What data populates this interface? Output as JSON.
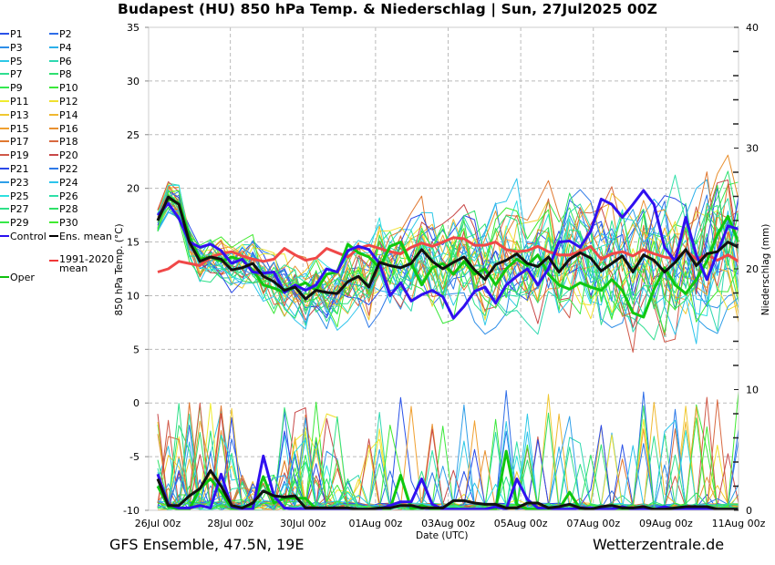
{
  "title": "Budapest  (HU)  850 hPa Temp. & Niederschlag | Sun, 27Jul2025 00Z",
  "footer": {
    "left": "GFS Ensemble, 47.5N, 19E",
    "right": "Wetterzentrale.de"
  },
  "legend": [
    {
      "label": "P1",
      "color": "#2a52e8"
    },
    {
      "label": "P2",
      "color": "#2f6ee8"
    },
    {
      "label": "P3",
      "color": "#2e8ee8"
    },
    {
      "label": "P4",
      "color": "#2cb0ea"
    },
    {
      "label": "P5",
      "color": "#2dc8e6"
    },
    {
      "label": "P6",
      "color": "#2ed8b0"
    },
    {
      "label": "P7",
      "color": "#2ede90"
    },
    {
      "label": "P8",
      "color": "#2ee070"
    },
    {
      "label": "P9",
      "color": "#34e850"
    },
    {
      "label": "P10",
      "color": "#3ae83a"
    },
    {
      "label": "P11",
      "color": "#f0ec30"
    },
    {
      "label": "P12",
      "color": "#f0e030"
    },
    {
      "label": "P13",
      "color": "#f0c830"
    },
    {
      "label": "P14",
      "color": "#f0b830"
    },
    {
      "label": "P15",
      "color": "#f0a030"
    },
    {
      "label": "P16",
      "color": "#e89030"
    },
    {
      "label": "P17",
      "color": "#e07830"
    },
    {
      "label": "P18",
      "color": "#d86840"
    },
    {
      "label": "P19",
      "color": "#d05848"
    },
    {
      "label": "P20",
      "color": "#c84848"
    },
    {
      "label": "P21",
      "color": "#2a48e8"
    },
    {
      "label": "P22",
      "color": "#2e7ae8"
    },
    {
      "label": "P23",
      "color": "#2e9ee8"
    },
    {
      "label": "P24",
      "color": "#2cc4ec"
    },
    {
      "label": "P25",
      "color": "#2ee0e0"
    },
    {
      "label": "P26",
      "color": "#2ee0a8"
    },
    {
      "label": "P27",
      "color": "#2ee088"
    },
    {
      "label": "P28",
      "color": "#2ee068"
    },
    {
      "label": "P29",
      "color": "#36e848"
    },
    {
      "label": "P30",
      "color": "#40ea30"
    },
    {
      "label": "Control",
      "color": "#2a10f0"
    },
    {
      "label": "Ens. mean",
      "color": "#000000"
    },
    {
      "label": "1991-2020 mean",
      "color": "#f03838"
    },
    {
      "label": "Oper",
      "color": "#10c010"
    }
  ],
  "chart_data": {
    "type": "line",
    "title": "Budapest  (HU)  850 hPa Temp. & Niederschlag | Sun, 27Jul2025 00Z",
    "xlabel": "Date (UTC)",
    "ylabel": "850 hPa Temp. (°C)",
    "y2label": "Niederschlag (mm)",
    "ylim": [
      -10,
      35
    ],
    "y2lim": [
      0,
      40
    ],
    "yticks": [
      "35",
      "30",
      "25",
      "20",
      "15",
      "10",
      "5",
      "0",
      "-5",
      "-10"
    ],
    "y2ticks": [
      "40",
      "30",
      "20",
      "10",
      "0"
    ],
    "xticks": [
      "26Jul 00z",
      "28Jul 00z",
      "30Jul 00z",
      "01Aug 00z",
      "03Aug 00z",
      "05Aug 00z",
      "07Aug 00z",
      "09Aug 00z",
      "11Aug 00z"
    ],
    "x_start": "26Jul 00z",
    "step_hours": 12,
    "grid": true,
    "legend_position": "left-outside",
    "series": [
      {
        "name": "Control",
        "temp": [
          17.5,
          18.6,
          17.2,
          15.0,
          14.5,
          14.8,
          14.2,
          13.0,
          13.4,
          12.2,
          12.1,
          12.2,
          10.3,
          11.0,
          10.5,
          11.0,
          12.5,
          12.2,
          14.2,
          14.6,
          14.3,
          13.0,
          10.0,
          11.2,
          9.5,
          10.1,
          10.5,
          9.9,
          7.9,
          9.0,
          10.4,
          10.8,
          9.3,
          11.0,
          11.8,
          12.5,
          11.0,
          12.5,
          15.0,
          15.1,
          14.5,
          16.0,
          19.0,
          18.5,
          17.3,
          18.5,
          19.8,
          18.5,
          14.5,
          13.2,
          17.3,
          13.8,
          11.5,
          14.0,
          16.5,
          16.2
        ],
        "precip": [
          3.0,
          0.5,
          0.2,
          0.2,
          0.4,
          0.2,
          3.0,
          0.3,
          0.1,
          0.1,
          4.5,
          1.2,
          0.2,
          0.1,
          0.1,
          0.1,
          0.1,
          0.1,
          0.1,
          0.1,
          0.1,
          0.1,
          0.4,
          0.7,
          0.7,
          2.6,
          0.5,
          0.1,
          0.1,
          0.1,
          0.1,
          0.1,
          0.3,
          0.1,
          2.6,
          0.9,
          0.2,
          0.2,
          0.1,
          0.1,
          0.2,
          0.2,
          0.1,
          0.1,
          0.3,
          0.1,
          0.1,
          0.1,
          0.3,
          0.1,
          0.1,
          0.1,
          0.1,
          0.1,
          0.1,
          0.1
        ]
      },
      {
        "name": "Oper",
        "temp": [
          17.0,
          19.0,
          18.6,
          15.5,
          13.4,
          13.6,
          13.2,
          13.6,
          13.3,
          12.4,
          11.0,
          10.7,
          10.3,
          10.8,
          11.2,
          10.5,
          12.0,
          12.2,
          14.8,
          14.0,
          13.6,
          12.6,
          14.6,
          15.0,
          13.0,
          11.0,
          12.6,
          13.0,
          12.0,
          13.2,
          12.0,
          12.5,
          11.0,
          12.5,
          13.4,
          12.8,
          13.8,
          12.0,
          11.0,
          10.6,
          11.2,
          10.8,
          10.5,
          11.5,
          10.5,
          8.4,
          8.0,
          10.6,
          12.6,
          11.0,
          10.2,
          11.5,
          13.2,
          15.7,
          17.4,
          15.0
        ],
        "precip": [
          2.0,
          0.3,
          0.1,
          0.1,
          1.8,
          2.6,
          1.5,
          0.2,
          0.1,
          0.3,
          2.8,
          0.6,
          1.0,
          1.0,
          1.0,
          0.1,
          0.1,
          0.1,
          0.1,
          0.1,
          0.1,
          0.1,
          0.1,
          2.9,
          0.1,
          0.4,
          0.1,
          0.1,
          0.1,
          0.1,
          0.1,
          0.1,
          0.1,
          4.9,
          0.5,
          0.1,
          0.1,
          0.1,
          0.1,
          1.5,
          0.1,
          0.1,
          0.1,
          0.1,
          0.1,
          0.1,
          0.1,
          0.1,
          0.1,
          0.1,
          0.1,
          0.1,
          0.1,
          0.1,
          0.1,
          0.1
        ]
      },
      {
        "name": "Ens. mean",
        "temp": [
          17.0,
          19.2,
          18.5,
          15.0,
          13.2,
          13.6,
          13.4,
          12.4,
          12.6,
          13.0,
          11.8,
          11.3,
          10.5,
          10.8,
          9.7,
          10.5,
          10.3,
          10.2,
          11.3,
          11.8,
          10.8,
          13.1,
          12.8,
          12.6,
          13.0,
          14.3,
          13.2,
          12.5,
          13.1,
          13.6,
          12.4,
          11.5,
          12.9,
          13.3,
          13.9,
          13.0,
          12.7,
          13.6,
          12.2,
          13.4,
          14.0,
          13.5,
          12.3,
          13.0,
          13.7,
          12.2,
          13.8,
          13.3,
          12.2,
          13.1,
          14.3,
          12.8,
          13.9,
          14.1,
          15.0,
          14.5
        ],
        "precip": [
          2.6,
          0.4,
          0.4,
          1.2,
          1.8,
          3.3,
          2.0,
          0.4,
          0.2,
          0.6,
          1.6,
          1.2,
          1.1,
          1.2,
          0.2,
          0.2,
          0.2,
          0.2,
          0.2,
          0.1,
          0.1,
          0.2,
          0.2,
          0.4,
          0.4,
          0.2,
          0.2,
          0.2,
          0.8,
          0.8,
          0.6,
          0.5,
          0.5,
          0.2,
          0.2,
          0.6,
          0.6,
          0.2,
          0.3,
          0.5,
          0.2,
          0.1,
          0.3,
          0.4,
          0.2,
          0.2,
          0.3,
          0.1,
          0.1,
          0.2,
          0.3,
          0.3,
          0.3,
          0.1,
          0.1,
          0.1
        ]
      },
      {
        "name": "1991-2020 mean",
        "temp": [
          12.2,
          12.5,
          13.2,
          13.0,
          12.8,
          13.6,
          13.9,
          14.1,
          13.7,
          13.4,
          13.2,
          13.4,
          14.4,
          13.8,
          13.3,
          13.5,
          14.4,
          14.0,
          13.6,
          14.4,
          14.7,
          14.4,
          14.1,
          13.9,
          14.5,
          14.9,
          14.6,
          15.0,
          15.4,
          15.3,
          14.7,
          14.7,
          15.0,
          14.3,
          14.1,
          14.2,
          14.6,
          14.1,
          13.8,
          13.8,
          14.1,
          14.6,
          13.4,
          13.9,
          14.1,
          13.7,
          14.3,
          13.9,
          13.6,
          13.4,
          14.2,
          13.4,
          13.8,
          13.3,
          13.8,
          13.2
        ]
      }
    ],
    "ensemble_members": 30,
    "points_per_series": 56
  }
}
